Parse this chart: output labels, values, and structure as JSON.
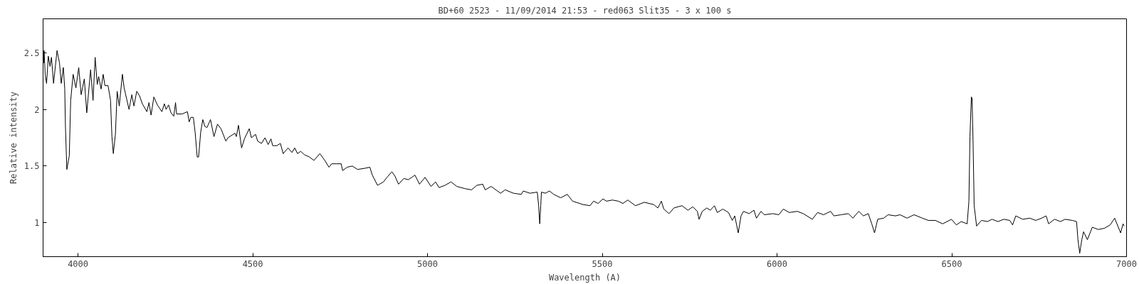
{
  "chart_data": {
    "type": "line",
    "title": "BD+60 2523 - 11/09/2014 21:53 - red063 Slit35 - 3 x 100 s",
    "xlabel": "Wavelength (A)",
    "ylabel": "Relative intensity",
    "xlim": [
      3900,
      7000
    ],
    "ylim": [
      0.7,
      2.8
    ],
    "xticks": [
      4000,
      4500,
      5000,
      5500,
      6000,
      6500,
      7000
    ],
    "yticks": [
      1,
      1.5,
      2,
      2.5
    ],
    "grid": false,
    "marker": "none",
    "line_style": "solid",
    "series": [
      {
        "color": "#000000",
        "x": [
          3902,
          3903,
          3906,
          3910,
          3915,
          3920,
          3924,
          3930,
          3940,
          3947,
          3952,
          3958,
          3962,
          3964,
          3968,
          3975,
          3979,
          3986,
          3994,
          4002,
          4009,
          4018,
          4025,
          4036,
          4043,
          4049,
          4055,
          4059,
          4066,
          4072,
          4077,
          4086,
          4093,
          4097,
          4101,
          4107,
          4112,
          4118,
          4127,
          4132,
          4146,
          4154,
          4160,
          4168,
          4176,
          4184,
          4197,
          4203,
          4209,
          4217,
          4227,
          4240,
          4247,
          4252,
          4259,
          4266,
          4274,
          4279,
          4282,
          4298,
          4313,
          4318,
          4323,
          4330,
          4335,
          4341,
          4345,
          4351,
          4357,
          4363,
          4369,
          4379,
          4389,
          4399,
          4409,
          4423,
          4429,
          4449,
          4453,
          4459,
          4468,
          4476,
          4490,
          4496,
          4508,
          4514,
          4525,
          4535,
          4544,
          4552,
          4557,
          4569,
          4579,
          4587,
          4601,
          4612,
          4620,
          4628,
          4637,
          4648,
          4662,
          4675,
          4692,
          4706,
          4718,
          4726,
          4739,
          4753,
          4757,
          4770,
          4785,
          4800,
          4820,
          4835,
          4842,
          4857,
          4874,
          4884,
          4898,
          4907,
          4917,
          4932,
          4945,
          4955,
          4964,
          4977,
          4993,
          5010,
          5023,
          5033,
          5050,
          5067,
          5084,
          5108,
          5126,
          5141,
          5158,
          5165,
          5182,
          5209,
          5222,
          5246,
          5268,
          5274,
          5293,
          5314,
          5318,
          5321,
          5324,
          5326,
          5337,
          5349,
          5361,
          5381,
          5400,
          5415,
          5445,
          5465,
          5475,
          5488,
          5502,
          5512,
          5529,
          5546,
          5559,
          5573,
          5595,
          5620,
          5647,
          5659,
          5669,
          5676,
          5691,
          5705,
          5728,
          5745,
          5759,
          5772,
          5777,
          5786,
          5799,
          5809,
          5821,
          5829,
          5845,
          5861,
          5872,
          5879,
          5889,
          5897,
          5904,
          5920,
          5934,
          5941,
          5954,
          5964,
          5988,
          6005,
          6018,
          6035,
          6058,
          6075,
          6101,
          6116,
          6133,
          6153,
          6163,
          6183,
          6204,
          6217,
          6234,
          6247,
          6261,
          6271,
          6279,
          6288,
          6305,
          6318,
          6339,
          6352,
          6372,
          6392,
          6416,
          6433,
          6453,
          6474,
          6499,
          6513,
          6527,
          6544,
          6549,
          6552,
          6556,
          6558,
          6561,
          6564,
          6571,
          6585,
          6602,
          6615,
          6632,
          6649,
          6666,
          6674,
          6683,
          6703,
          6723,
          6740,
          6757,
          6770,
          6777,
          6794,
          6811,
          6824,
          6845,
          6857,
          6861,
          6866,
          6872,
          6877,
          6888,
          6902,
          6919,
          6936,
          6953,
          6966,
          6983,
          6990,
          6993
        ],
        "values": [
          2.41,
          2.52,
          2.31,
          2.23,
          2.47,
          2.38,
          2.46,
          2.23,
          2.52,
          2.41,
          2.23,
          2.37,
          2.18,
          1.85,
          1.47,
          1.59,
          2.08,
          2.31,
          2.19,
          2.37,
          2.13,
          2.27,
          1.97,
          2.35,
          2.08,
          2.46,
          2.22,
          2.29,
          2.18,
          2.31,
          2.21,
          2.21,
          2.08,
          1.76,
          1.61,
          1.78,
          2.16,
          2.03,
          2.31,
          2.19,
          2.0,
          2.13,
          2.03,
          2.16,
          2.12,
          2.05,
          1.98,
          2.06,
          1.95,
          2.11,
          2.04,
          1.98,
          2.05,
          2.0,
          2.04,
          1.97,
          1.94,
          2.06,
          1.96,
          1.96,
          1.98,
          1.89,
          1.93,
          1.93,
          1.8,
          1.58,
          1.58,
          1.8,
          1.91,
          1.85,
          1.84,
          1.91,
          1.76,
          1.87,
          1.83,
          1.72,
          1.75,
          1.79,
          1.76,
          1.86,
          1.66,
          1.74,
          1.83,
          1.75,
          1.78,
          1.72,
          1.7,
          1.75,
          1.69,
          1.74,
          1.68,
          1.68,
          1.7,
          1.61,
          1.66,
          1.62,
          1.66,
          1.61,
          1.63,
          1.6,
          1.58,
          1.55,
          1.61,
          1.55,
          1.49,
          1.52,
          1.52,
          1.52,
          1.46,
          1.49,
          1.5,
          1.47,
          1.48,
          1.49,
          1.42,
          1.33,
          1.36,
          1.4,
          1.45,
          1.41,
          1.34,
          1.39,
          1.38,
          1.4,
          1.42,
          1.34,
          1.4,
          1.32,
          1.36,
          1.31,
          1.33,
          1.36,
          1.32,
          1.3,
          1.29,
          1.33,
          1.34,
          1.29,
          1.32,
          1.26,
          1.29,
          1.26,
          1.25,
          1.28,
          1.26,
          1.27,
          1.15,
          0.99,
          1.15,
          1.27,
          1.26,
          1.28,
          1.25,
          1.22,
          1.25,
          1.19,
          1.16,
          1.15,
          1.19,
          1.17,
          1.21,
          1.19,
          1.2,
          1.19,
          1.17,
          1.2,
          1.15,
          1.18,
          1.16,
          1.13,
          1.19,
          1.12,
          1.08,
          1.13,
          1.15,
          1.11,
          1.14,
          1.1,
          1.03,
          1.1,
          1.13,
          1.11,
          1.15,
          1.09,
          1.12,
          1.09,
          1.02,
          1.06,
          0.91,
          1.06,
          1.1,
          1.08,
          1.11,
          1.04,
          1.1,
          1.07,
          1.08,
          1.07,
          1.12,
          1.09,
          1.1,
          1.08,
          1.03,
          1.09,
          1.07,
          1.1,
          1.06,
          1.07,
          1.08,
          1.04,
          1.1,
          1.06,
          1.08,
          0.99,
          0.91,
          1.03,
          1.04,
          1.07,
          1.06,
          1.07,
          1.04,
          1.07,
          1.04,
          1.02,
          1.02,
          0.99,
          1.03,
          0.98,
          1.01,
          0.99,
          1.19,
          1.76,
          2.11,
          2.1,
          1.7,
          1.15,
          0.97,
          1.02,
          1.01,
          1.03,
          1.01,
          1.03,
          1.02,
          0.98,
          1.06,
          1.03,
          1.04,
          1.02,
          1.04,
          1.06,
          0.99,
          1.03,
          1.01,
          1.03,
          1.02,
          1.01,
          0.85,
          0.73,
          0.85,
          0.92,
          0.85,
          0.96,
          0.94,
          0.95,
          0.98,
          1.04,
          0.91,
          0.99,
          0.97
        ]
      }
    ]
  }
}
